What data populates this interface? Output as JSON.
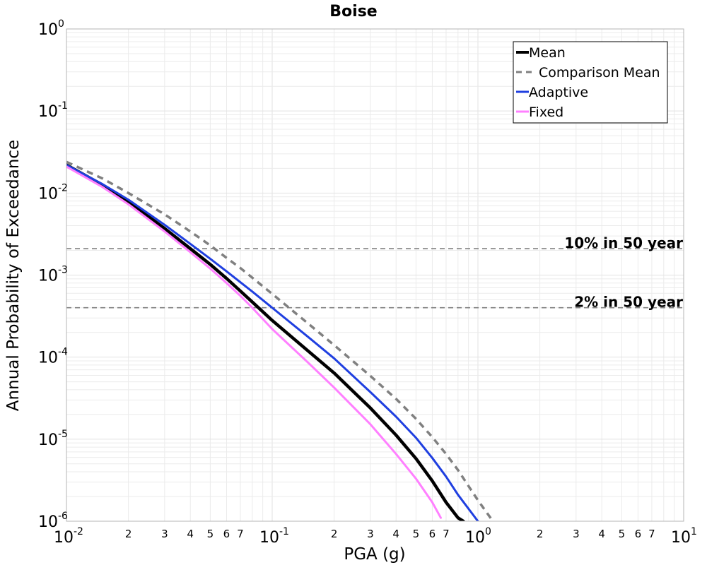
{
  "chart_data": {
    "type": "line",
    "title": "Boise",
    "xlabel": "PGA (g)",
    "ylabel": "Annual Probability of Exceedance",
    "x_scale": "log",
    "y_scale": "log",
    "xlim": [
      0.01,
      10
    ],
    "ylim": [
      1e-06,
      1
    ],
    "grid": true,
    "legend_position": "top-right",
    "x_major_ticks": [
      {
        "value": 0.01,
        "base": "10",
        "exp": "-2"
      },
      {
        "value": 0.1,
        "base": "10",
        "exp": "-1"
      },
      {
        "value": 1,
        "base": "10",
        "exp": "0"
      },
      {
        "value": 10,
        "base": "10",
        "exp": "1"
      }
    ],
    "x_minor_tick_labels": [
      "2",
      "3",
      "4",
      "5",
      "6",
      "7"
    ],
    "y_major_ticks": [
      {
        "value": 1,
        "base": "10",
        "exp": "0"
      },
      {
        "value": 0.1,
        "base": "10",
        "exp": "-1"
      },
      {
        "value": 0.01,
        "base": "10",
        "exp": "-2"
      },
      {
        "value": 0.001,
        "base": "10",
        "exp": "-3"
      },
      {
        "value": 0.0001,
        "base": "10",
        "exp": "-4"
      },
      {
        "value": 1e-05,
        "base": "10",
        "exp": "-5"
      },
      {
        "value": 1e-06,
        "base": "10",
        "exp": "-6"
      }
    ],
    "reference_lines": [
      {
        "label": "10% in 50 year",
        "y": 0.0021
      },
      {
        "label": "2% in 50 year",
        "y": 0.0004
      }
    ],
    "series": [
      {
        "name": "Mean",
        "color": "#000000",
        "style": "solid",
        "x": [
          0.01,
          0.015,
          0.02,
          0.03,
          0.04,
          0.05,
          0.06,
          0.07,
          0.08,
          0.1,
          0.15,
          0.2,
          0.3,
          0.4,
          0.5,
          0.6,
          0.7,
          0.8,
          0.85
        ],
        "y": [
          0.022,
          0.0125,
          0.0078,
          0.0037,
          0.0021,
          0.00135,
          0.00091,
          0.00064,
          0.00047,
          0.00028,
          0.000118,
          6.4e-05,
          2.4e-05,
          1.12e-05,
          5.8e-06,
          3.1e-06,
          1.7e-06,
          1.1e-06,
          1e-06
        ]
      },
      {
        "name": "Comparison Mean",
        "color": "#808080",
        "style": "dashed",
        "x": [
          0.01,
          0.015,
          0.02,
          0.03,
          0.04,
          0.05,
          0.06,
          0.07,
          0.08,
          0.1,
          0.15,
          0.2,
          0.3,
          0.4,
          0.5,
          0.6,
          0.7,
          0.8,
          1.0,
          1.2
        ],
        "y": [
          0.024,
          0.015,
          0.01,
          0.0055,
          0.0034,
          0.0023,
          0.00162,
          0.00122,
          0.00093,
          0.00059,
          0.000255,
          0.00014,
          5.9e-05,
          3.1e-05,
          1.77e-05,
          1.06e-05,
          6.6e-06,
          4.2e-06,
          1.8e-06,
          9.5e-07
        ]
      },
      {
        "name": "Adaptive",
        "color": "#1f3fe0",
        "style": "solid",
        "x": [
          0.01,
          0.015,
          0.02,
          0.03,
          0.04,
          0.05,
          0.06,
          0.07,
          0.08,
          0.1,
          0.15,
          0.2,
          0.3,
          0.4,
          0.5,
          0.6,
          0.7,
          0.8,
          1.0
        ],
        "y": [
          0.022,
          0.0128,
          0.0083,
          0.0041,
          0.0024,
          0.00158,
          0.00111,
          0.00082,
          0.00063,
          0.0004,
          0.000175,
          9.65e-05,
          3.75e-05,
          1.88e-05,
          1.04e-05,
          5.9e-06,
          3.5e-06,
          2.1e-06,
          1e-06
        ]
      },
      {
        "name": "Fixed",
        "color": "#ff80ff",
        "style": "solid",
        "x": [
          0.01,
          0.015,
          0.02,
          0.03,
          0.04,
          0.05,
          0.06,
          0.07,
          0.08,
          0.1,
          0.15,
          0.2,
          0.3,
          0.4,
          0.5,
          0.6,
          0.66
        ],
        "y": [
          0.021,
          0.0118,
          0.0073,
          0.0034,
          0.0019,
          0.0012,
          0.0008,
          0.00056,
          0.0004,
          0.00022,
          8.5e-05,
          4.25e-05,
          1.52e-05,
          6.6e-06,
          3.3e-06,
          1.7e-06,
          1.1e-06
        ]
      }
    ]
  }
}
